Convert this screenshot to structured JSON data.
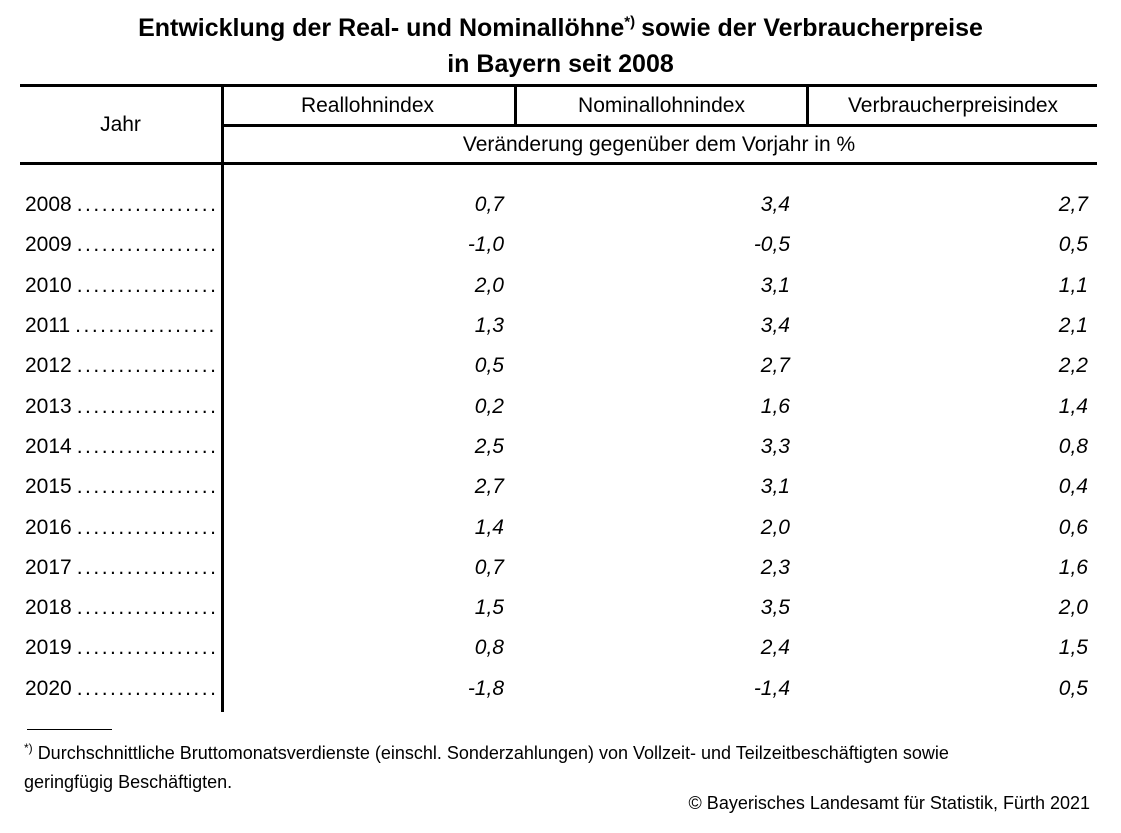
{
  "title": {
    "part1": "Entwicklung der Real- und Nominallöhne",
    "footnote_marker": "*)",
    "part2": "sowie der Verbraucherpreise",
    "line2": "in Bayern seit 2008"
  },
  "table": {
    "year_header": "Jahr",
    "columns": [
      "Reallohnindex",
      "Nominallohnindex",
      "Verbraucherpreisindex"
    ],
    "subheader": "Veränderung gegenüber dem Vorjahr in %",
    "leader_dots": "....................",
    "rows": [
      {
        "year": "2008",
        "values": [
          "0,7",
          "3,4",
          "2,7"
        ]
      },
      {
        "year": "2009",
        "values": [
          "-1,0",
          "-0,5",
          "0,5"
        ]
      },
      {
        "year": "2010",
        "values": [
          "2,0",
          "3,1",
          "1,1"
        ]
      },
      {
        "year": "2011",
        "values": [
          "1,3",
          "3,4",
          "2,1"
        ]
      },
      {
        "year": "2012",
        "values": [
          "0,5",
          "2,7",
          "2,2"
        ]
      },
      {
        "year": "2013",
        "values": [
          "0,2",
          "1,6",
          "1,4"
        ]
      },
      {
        "year": "2014",
        "values": [
          "2,5",
          "3,3",
          "0,8"
        ]
      },
      {
        "year": "2015",
        "values": [
          "2,7",
          "3,1",
          "0,4"
        ]
      },
      {
        "year": "2016",
        "values": [
          "1,4",
          "2,0",
          "0,6"
        ]
      },
      {
        "year": "2017",
        "values": [
          "0,7",
          "2,3",
          "1,6"
        ]
      },
      {
        "year": "2018",
        "values": [
          "1,5",
          "3,5",
          "2,0"
        ]
      },
      {
        "year": "2019",
        "values": [
          "0,8",
          "2,4",
          "1,5"
        ]
      },
      {
        "year": "2020",
        "values": [
          "-1,8",
          "-1,4",
          "0,5"
        ]
      }
    ]
  },
  "footnote": {
    "marker": "*)",
    "line1": "Durchschnittliche Bruttomonatsverdienste (einschl. Sonderzahlungen) von Vollzeit- und Teilzeitbeschäftigten sowie",
    "line2": "geringfügig Beschäftigten."
  },
  "copyright": "© Bayerisches Landesamt für Statistik, Fürth 2021"
}
